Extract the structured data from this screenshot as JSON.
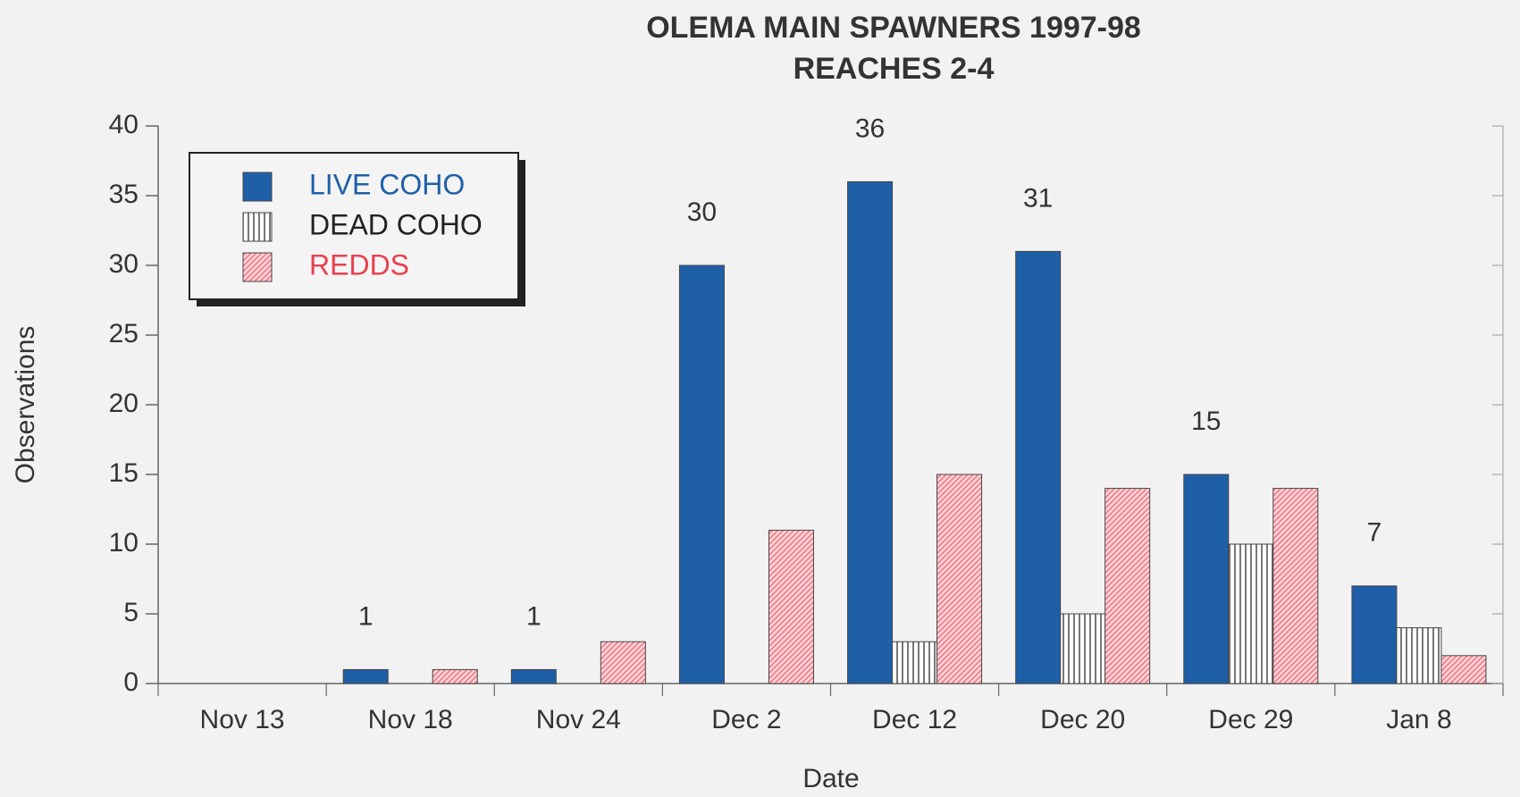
{
  "chart_data": {
    "type": "bar",
    "title": "OLEMA MAIN SPAWNERS 1997-98",
    "subtitle": "REACHES 2-4",
    "x_label": "Date",
    "y_label": "Observations",
    "categories": [
      "Nov 13",
      "Nov 18",
      "Nov 24",
      "Dec 2",
      "Dec 12",
      "Dec 20",
      "Dec 29",
      "Jan 8"
    ],
    "series": [
      {
        "name": "LIVE COHO",
        "color": "#1f5fa8",
        "pattern": "solid",
        "legend_text_color": "#1f5fa8",
        "data_labels": true,
        "values": [
          0,
          1,
          1,
          30,
          36,
          31,
          15,
          7
        ]
      },
      {
        "name": "DEAD COHO",
        "color": "#555555",
        "pattern": "vertical",
        "legend_text_color": "#222222",
        "values": [
          0,
          0,
          0,
          0,
          3,
          5,
          10,
          4
        ]
      },
      {
        "name": "REDDS",
        "color": "#ee6677",
        "pattern": "diagonal",
        "legend_text_color": "#e8404f",
        "values": [
          0,
          1,
          3,
          11,
          15,
          14,
          14,
          2
        ]
      }
    ],
    "ylim": [
      0,
      40
    ],
    "yticks": [
      0,
      5,
      10,
      15,
      20,
      25,
      30,
      35,
      40
    ],
    "legend": "upper left",
    "grid": false
  }
}
